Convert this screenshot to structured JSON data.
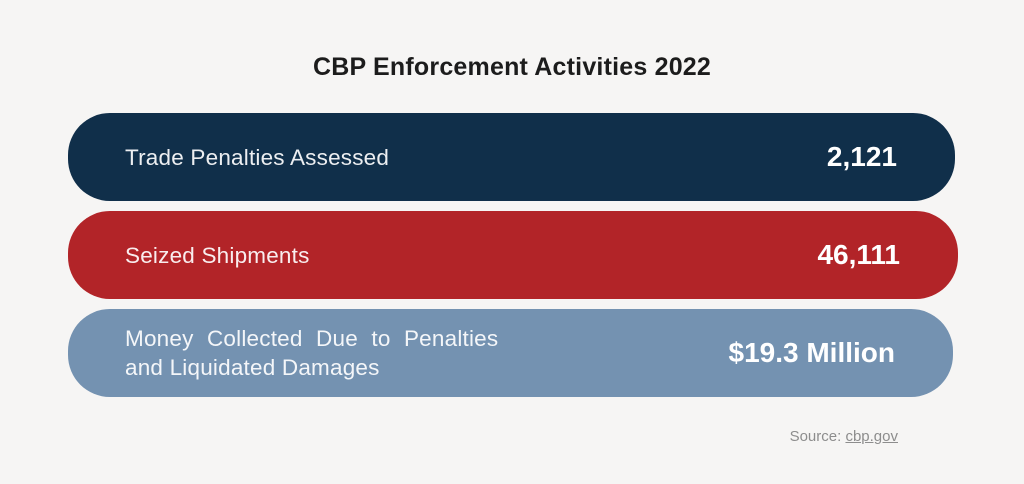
{
  "title": "CBP Enforcement Activities 2022",
  "chart_data": {
    "type": "bar",
    "orientation": "horizontal",
    "title": "CBP Enforcement Activities 2022",
    "categories": [
      "Trade Penalties Assessed",
      "Seized Shipments",
      "Money Collected Due to Penalties and Liquidated Damages"
    ],
    "value_labels": [
      "2,121",
      "46,111",
      "$19.3 Million"
    ],
    "values": [
      2121,
      46111,
      19300000
    ],
    "bar_colors": [
      "#102f4a",
      "#b22428",
      "#7492b1"
    ],
    "grid": false,
    "legend_position": "none",
    "axes": "none",
    "source": "Source: cbp.gov"
  },
  "bars": [
    {
      "lines": [
        "Trade Penalties Assessed"
      ],
      "value": "2,121",
      "color": "#102f4a"
    },
    {
      "lines": [
        "Seized Shipments"
      ],
      "value": "46,111",
      "color": "#b22428"
    },
    {
      "lines": [
        "Money Collected Due to Penalties",
        "and Liquidated Damages"
      ],
      "value": "$19.3 Million",
      "color": "#7492b1"
    }
  ],
  "source": {
    "label": "Source: ",
    "link_text": "cbp.gov"
  },
  "colors": {
    "background": "#f6f5f4",
    "navy": "#102f4a",
    "red": "#b22428",
    "blue_gray": "#7492b1",
    "title_text": "#1c1c1c",
    "label_text": "#ebeff3",
    "value_text": "#ffffff",
    "source_text": "#8d8d8d"
  }
}
